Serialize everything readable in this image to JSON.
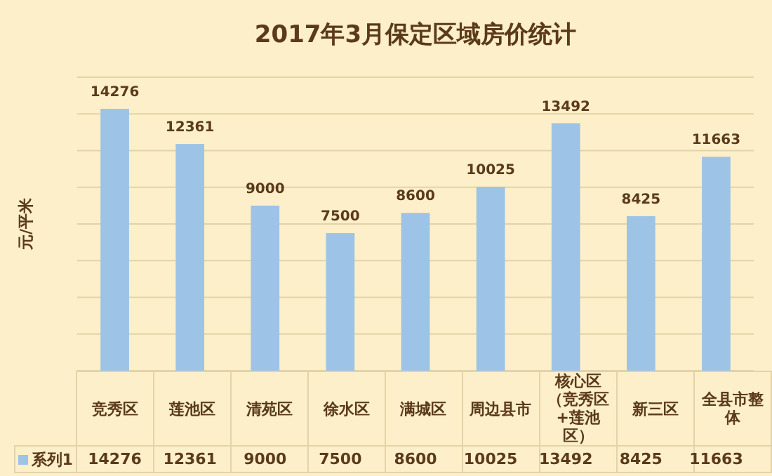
{
  "chart_data": {
    "type": "bar",
    "title": "2017年3月保定区域房价统计",
    "ylabel": "元/平米",
    "categories": [
      "竞秀区",
      "莲池区",
      "清苑区",
      "徐水区",
      "满城区",
      "周边县市",
      "核心区（竞秀区+莲池区）",
      "新三区",
      "全县市整体"
    ],
    "series": [
      {
        "name": "系列1",
        "color": "#9dc3e6",
        "values": [
          14276,
          12361,
          9000,
          7500,
          8600,
          10025,
          13492,
          8425,
          11663
        ]
      }
    ],
    "annotations": [
      "14276",
      "12361",
      "9000",
      "7500",
      "8600",
      "10025",
      "13492",
      "8425",
      "11663"
    ],
    "ylim": [
      0,
      16000
    ],
    "yticks": [
      {
        "value": 0,
        "label": null
      },
      {
        "value": 2000,
        "label": null
      },
      {
        "value": 4000,
        "label": null
      },
      {
        "value": 6000,
        "label": null
      },
      {
        "value": 8000,
        "label": null
      },
      {
        "value": 10000,
        "label": null
      },
      {
        "value": 12000,
        "label": null
      },
      {
        "value": 14000,
        "label": null
      },
      {
        "value": 16000,
        "label": null
      }
    ],
    "grid": "y",
    "legend": "bottom",
    "data_labels": true
  }
}
